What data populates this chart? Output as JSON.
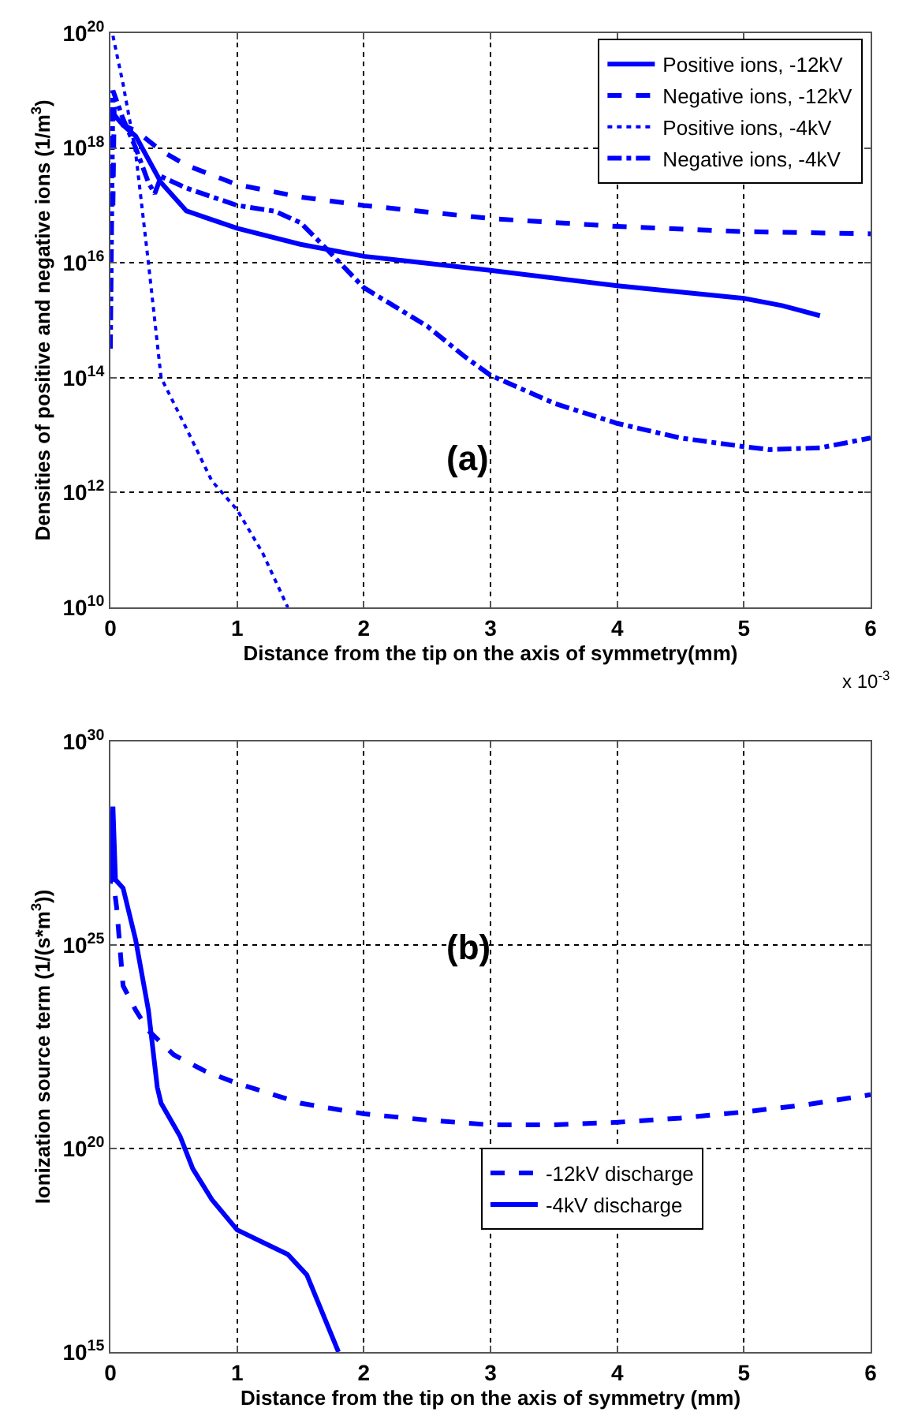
{
  "chart_data": [
    {
      "type": "line",
      "xlabel": "Distance from the tip on the axis of symmetry(mm)",
      "ylabel": "Densities of positive and negative ions (1/m$^{3}$)",
      "log": "y",
      "grid": true,
      "legend": "top right",
      "marker": "none",
      "xlim": [
        0,
        6
      ],
      "xticks": [
        0,
        1,
        2,
        3,
        4,
        5,
        6
      ],
      "ylim": [
        10000000000.0,
        1e+20
      ],
      "yticks": [
        {
          "value": 10000000000.0,
          "label": "10$^{10}$"
        },
        {
          "value": 1000000000000.0,
          "label": "10$^{12}$"
        },
        {
          "value": 100000000000000.0,
          "label": "10$^{14}$"
        },
        {
          "value": 1e+16,
          "label": "10$^{16}$"
        },
        {
          "value": 1e+18,
          "label": "10$^{18}$"
        },
        {
          "value": 1e+20,
          "label": "10$^{20}$"
        }
      ],
      "annotations": [
        "(a)",
        "x 10$^{-3}$"
      ],
      "series": [
        {
          "name": "Positive ions, -12kV",
          "color": "#0000ff",
          "line_style": "solid",
          "x": [
            0.02,
            0.1,
            0.2,
            0.4,
            0.6,
            1,
            1.5,
            2,
            3,
            4,
            5,
            5.3,
            5.6
          ],
          "values": [
            4e+18,
            2.5e+18,
            1.6e+18,
            2.5e+17,
            8e+16,
            4e+16,
            2.1e+16,
            1.3e+16,
            7400000000000000.0,
            4000000000000000.0,
            2400000000000000.0,
            1800000000000000.0,
            1200000000000000.0
          ]
        },
        {
          "name": "Negative ions, -12kV",
          "color": "#0000ff",
          "line_style": "dashed",
          "x": [
            0.02,
            0.03,
            0.1,
            0.2,
            0.4,
            0.6,
            1,
            1.5,
            2,
            3,
            4,
            5,
            6
          ],
          "values": [
            1e+17,
            5e+18,
            2.5e+18,
            2e+18,
            9e+17,
            5e+17,
            2.3e+17,
            1.4e+17,
            1e+17,
            5.9e+16,
            4.3e+16,
            3.5e+16,
            3.2e+16
          ]
        },
        {
          "name": "Positive ions, -4kV",
          "color": "#0000ff",
          "line_style": "dotted",
          "x": [
            0.02,
            0.1,
            0.2,
            0.3,
            0.4,
            0.6,
            0.8,
            1,
            1.2,
            1.4
          ],
          "values": [
            9e+19,
            1.3e+19,
            8e+17,
            1e+16,
            100000000000000.0,
            13000000000000.0,
            1600000000000.0,
            500000000000.0,
            90000000000.0,
            10000000000.0
          ]
        },
        {
          "name": "Negative ions, -4kV",
          "color": "#0000ff",
          "line_style": "dashdot",
          "x": [
            0,
            0.02,
            0.1,
            0.2,
            0.3,
            0.35,
            0.4,
            0.6,
            1,
            1.3,
            1.5,
            1.7,
            2,
            2.5,
            2.8,
            3,
            3.5,
            4,
            4.5,
            5,
            5.2,
            5.6,
            6
          ],
          "values": [
            320000000000000.0,
            1e+19,
            3.2e+18,
            1e+18,
            2.5e+17,
            1.6e+17,
            3.2e+17,
            2e+17,
            1e+17,
            7.9e+16,
            5e+16,
            1.8e+16,
            3700000000000000.0,
            790000000000000.0,
            230000000000000.0,
            110000000000000.0,
            36000000000000.0,
            16000000000000.0,
            8900000000000.0,
            6300000000000.0,
            5600000000000.0,
            6000000000000.0,
            8900000000000.0
          ]
        }
      ]
    },
    {
      "type": "line",
      "xlabel": "Distance from the tip on the axis of symmetry (mm)",
      "ylabel": "Ionization source term (1/(s*m$^{3}$))",
      "log": "y",
      "grid": true,
      "legend": "bottom right",
      "marker": "none",
      "xlim": [
        0,
        6
      ],
      "xticks": [
        0,
        1,
        2,
        3,
        4,
        5,
        6
      ],
      "ylim": [
        1000000000000000.0,
        1e+30
      ],
      "yticks": [
        {
          "value": 1000000000000000.0,
          "label": "10$^{15}$"
        },
        {
          "value": 1e+20,
          "label": "10$^{20}$"
        },
        {
          "value": 1e+25,
          "label": "10$^{25}$"
        },
        {
          "value": 1e+30,
          "label": "10$^{30}$"
        }
      ],
      "annotations": [
        "(b)"
      ],
      "series": [
        {
          "name": "-12kV discharge",
          "color": "#0000ff",
          "line_style": "dashed",
          "x": [
            0.01,
            0.05,
            0.1,
            0.2,
            0.3,
            0.5,
            0.75,
            1,
            1.5,
            2,
            2.5,
            3,
            3.5,
            4,
            4.5,
            5,
            5.5,
            6
          ],
          "values": [
            7.9e+26,
            7.9e+25,
            1e+24,
            2.5e+23,
            7.9e+22,
            2e+22,
            7.9e+21,
            4e+21,
            1.3e+21,
            7.1e+20,
            5e+20,
            3.8e+20,
            3.8e+20,
            4.4e+20,
            5.6e+20,
            7.9e+20,
            1.2e+21,
            2.1e+21
          ]
        },
        {
          "name": "-4kV discharge",
          "color": "#0000ff",
          "line_style": "solid",
          "x": [
            0,
            0.02,
            0.04,
            0.1,
            0.2,
            0.3,
            0.37,
            0.4,
            0.55,
            0.65,
            0.8,
            1,
            1.2,
            1.4,
            1.55,
            1.8
          ],
          "values": [
            3.2e+26,
            2.5e+28,
            4e+26,
            2.5e+26,
            1.3e+25,
            2.5e+23,
            3.2e+21,
            1.3e+21,
            2e+20,
            3.2e+19,
            5.6e+18,
            1e+18,
            5e+17,
            2.5e+17,
            7.9e+16,
            1000000000000000.0
          ]
        }
      ]
    }
  ]
}
